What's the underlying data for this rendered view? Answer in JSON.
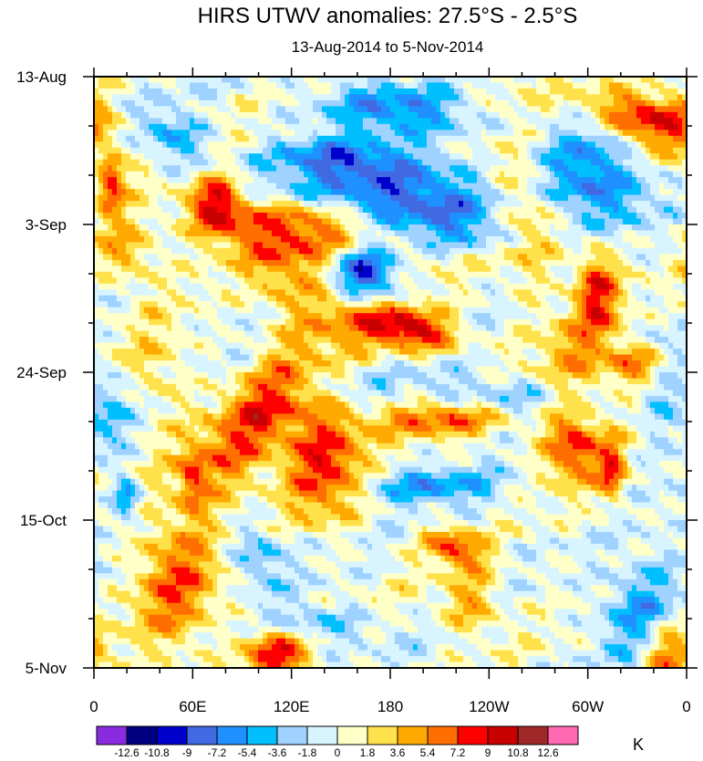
{
  "chart_data": {
    "type": "heatmap",
    "title": "HIRS UTWV anomalies: 27.5°S - 2.5°S",
    "subtitle": "13-Aug-2014 to 5-Nov-2014",
    "xlabel": "",
    "ylabel": "",
    "x_ticks": [
      "0",
      "60E",
      "120E",
      "180",
      "120W",
      "60W",
      "0"
    ],
    "x_tick_lons": [
      0,
      60,
      120,
      180,
      240,
      300,
      360
    ],
    "xlim": [
      0,
      360
    ],
    "y_ticks": [
      "13-Aug",
      "3-Sep",
      "24-Sep",
      "15-Oct",
      "5-Nov"
    ],
    "y_tick_days": [
      0,
      21,
      42,
      63,
      84
    ],
    "ylim_days": [
      0,
      84
    ],
    "colorbar": {
      "unit": "K",
      "levels": [
        "-12.6",
        "-10.8",
        "-9",
        "-7.2",
        "-5.4",
        "-3.6",
        "-1.8",
        "0",
        "1.8",
        "3.6",
        "5.4",
        "7.2",
        "9",
        "10.8",
        "12.6"
      ],
      "colors": [
        "#8a2be2",
        "#000080",
        "#0000cd",
        "#4169e1",
        "#1e90ff",
        "#00bfff",
        "#a0d2ff",
        "#d8f5ff",
        "#ffffc8",
        "#ffe14b",
        "#ffaa00",
        "#ff6e00",
        "#ff0000",
        "#c80000",
        "#a02828",
        "#ff69b4"
      ]
    },
    "features": [
      {
        "lon": 160,
        "day": 12,
        "value": -8,
        "slope": 0.5,
        "len": 60,
        "wid": 2.0
      },
      {
        "lon": 170,
        "day": 17,
        "value": -9,
        "slope": 0.6,
        "len": 90,
        "wid": 2.5
      },
      {
        "lon": 165,
        "day": 28,
        "value": -10,
        "slope": 0,
        "len": 22,
        "wid": 2.5
      },
      {
        "lon": 190,
        "day": 5,
        "value": -6,
        "slope": 0.5,
        "len": 60,
        "wid": 3.0
      },
      {
        "lon": 50,
        "day": 9,
        "value": -5,
        "slope": 0.2,
        "len": 25,
        "wid": 3.0
      },
      {
        "lon": 300,
        "day": 15,
        "value": -7,
        "slope": 0.15,
        "len": 40,
        "wid": 4.0
      },
      {
        "lon": 310,
        "day": 8,
        "value": -5,
        "slope": 0,
        "len": 30,
        "wid": 3.0
      },
      {
        "lon": 220,
        "day": 22,
        "value": -5,
        "slope": 0.4,
        "len": 50,
        "wid": 2.0
      },
      {
        "lon": 240,
        "day": 46,
        "value": -5,
        "slope": 0.5,
        "len": 70,
        "wid": 2.5
      },
      {
        "lon": 170,
        "day": 47,
        "value": -4,
        "slope": 0.3,
        "len": 40,
        "wid": 2.0
      },
      {
        "lon": 200,
        "day": 58,
        "value": -5,
        "slope": 0.4,
        "len": 60,
        "wid": 2.0
      },
      {
        "lon": 100,
        "day": 68,
        "value": -5,
        "slope": 0,
        "len": 20,
        "wid": 3.0
      },
      {
        "lon": 330,
        "day": 75,
        "value": -6,
        "slope": -0.2,
        "len": 25,
        "wid": 5.0
      },
      {
        "lon": 20,
        "day": 60,
        "value": -7,
        "slope": 0,
        "len": 10,
        "wid": 2.0
      },
      {
        "lon": 140,
        "day": 78,
        "value": -4,
        "slope": 0.3,
        "len": 40,
        "wid": 2.0
      },
      {
        "lon": 10,
        "day": 48,
        "value": -4,
        "slope": 0,
        "len": 15,
        "wid": 4.0
      },
      {
        "lon": 90,
        "day": 30,
        "value": -3,
        "slope": 0,
        "len": 25,
        "wid": 4.0
      },
      {
        "lon": 345,
        "day": 45,
        "value": -3,
        "slope": 0,
        "len": 15,
        "wid": 6.0
      },
      {
        "lon": 330,
        "day": 6,
        "value": 10,
        "slope": 0.3,
        "len": 45,
        "wid": 3.0
      },
      {
        "lon": 120,
        "day": 20,
        "value": 6,
        "slope": 0.3,
        "len": 70,
        "wid": 4.0
      },
      {
        "lon": 75,
        "day": 18,
        "value": 9,
        "slope": 0,
        "len": 18,
        "wid": 3.0
      },
      {
        "lon": 110,
        "day": 28,
        "value": 5,
        "slope": 0,
        "len": 40,
        "wid": 5.0
      },
      {
        "lon": 195,
        "day": 36,
        "value": 9,
        "slope": 0.3,
        "len": 30,
        "wid": 2.0
      },
      {
        "lon": 200,
        "day": 48,
        "value": 9,
        "slope": 0.4,
        "len": 70,
        "wid": 2.0
      },
      {
        "lon": 140,
        "day": 55,
        "value": 9,
        "slope": 0,
        "len": 30,
        "wid": 5.0
      },
      {
        "lon": 95,
        "day": 50,
        "value": 7,
        "slope": -0.3,
        "len": 30,
        "wid": 8.0
      },
      {
        "lon": 305,
        "day": 30,
        "value": 8,
        "slope": 0,
        "len": 15,
        "wid": 4.0
      },
      {
        "lon": 330,
        "day": 41,
        "value": 7,
        "slope": 0,
        "len": 20,
        "wid": 2.0
      },
      {
        "lon": 290,
        "day": 52,
        "value": 8,
        "slope": 0,
        "len": 20,
        "wid": 4.0
      },
      {
        "lon": 315,
        "day": 56,
        "value": 7,
        "slope": 0,
        "len": 10,
        "wid": 3.0
      },
      {
        "lon": 50,
        "day": 72,
        "value": 6,
        "slope": 0,
        "len": 30,
        "wid": 7.0
      },
      {
        "lon": 110,
        "day": 82,
        "value": 9,
        "slope": 0,
        "len": 20,
        "wid": 2.5
      },
      {
        "lon": 220,
        "day": 67,
        "value": 7,
        "slope": 0.3,
        "len": 20,
        "wid": 2.0
      },
      {
        "lon": 20,
        "day": 25,
        "value": 5,
        "slope": 0,
        "len": 20,
        "wid": 3.0
      },
      {
        "lon": 10,
        "day": 15,
        "value": 8,
        "slope": 0,
        "len": 10,
        "wid": 3.0
      },
      {
        "lon": 295,
        "day": 40,
        "value": 4,
        "slope": 0,
        "len": 30,
        "wid": 5.0
      },
      {
        "lon": 265,
        "day": 22,
        "value": 4,
        "slope": 0,
        "len": 20,
        "wid": 6.0
      },
      {
        "lon": 160,
        "day": 35,
        "value": 4,
        "slope": 0.2,
        "len": 40,
        "wid": 3.0
      },
      {
        "lon": 230,
        "day": 75,
        "value": 5,
        "slope": 0,
        "len": 20,
        "wid": 3.0
      },
      {
        "lon": 350,
        "day": 82,
        "value": 6,
        "slope": 0,
        "len": 20,
        "wid": 3.0
      },
      {
        "lon": 40,
        "day": 42,
        "value": 3,
        "slope": 0,
        "len": 20,
        "wid": 5.0
      },
      {
        "lon": 60,
        "day": 57,
        "value": 5,
        "slope": 0,
        "len": 10,
        "wid": 3.0
      },
      {
        "lon": 250,
        "day": 12,
        "value": 3,
        "slope": 0,
        "len": 30,
        "wid": 5.0
      }
    ]
  }
}
